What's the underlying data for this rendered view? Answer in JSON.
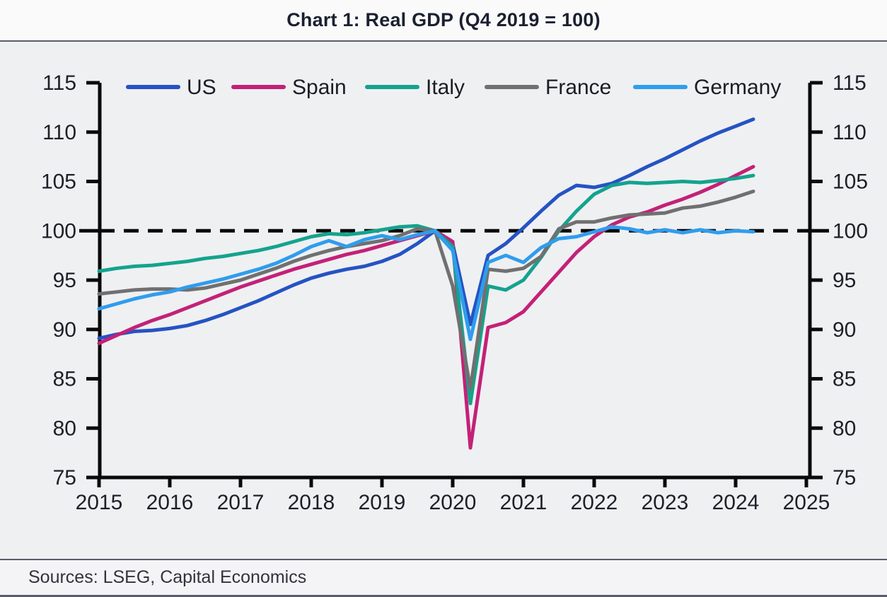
{
  "chart_data": {
    "type": "line",
    "title": "Chart 1: Real GDP (Q4 2019 = 100)",
    "sources": "Sources: LSEG, Capital Economics",
    "xlabel": "",
    "ylabel": "",
    "x_start": 2015,
    "x_step": 0.25,
    "x_ticks": [
      2015,
      2016,
      2017,
      2018,
      2019,
      2020,
      2021,
      2022,
      2023,
      2024,
      2025
    ],
    "y_ticks": [
      75,
      80,
      85,
      90,
      95,
      100,
      105,
      110,
      115
    ],
    "ylim": [
      75,
      115
    ],
    "xlim": [
      2015,
      2025.1
    ],
    "grid": false,
    "legend_position": "top-inside",
    "axis_color": "#0a0a0a",
    "reference_line": {
      "value": 100,
      "style": "dashed",
      "color": "#0a0a0a"
    },
    "series": [
      {
        "name": "US",
        "color": "#2553c4",
        "values": [
          89.1,
          89.5,
          89.8,
          89.9,
          90.1,
          90.4,
          90.9,
          91.5,
          92.2,
          92.9,
          93.7,
          94.5,
          95.2,
          95.7,
          96.1,
          96.4,
          96.9,
          97.6,
          98.7,
          100.0,
          98.7,
          90.5,
          97.5,
          98.7,
          100.3,
          102.0,
          103.6,
          104.6,
          104.4,
          104.8,
          105.6,
          106.5,
          107.3,
          108.2,
          109.1,
          109.9,
          110.6,
          111.3
        ]
      },
      {
        "name": "Spain",
        "color": "#c32178",
        "values": [
          88.6,
          89.4,
          90.2,
          90.9,
          91.5,
          92.2,
          92.9,
          93.6,
          94.3,
          94.9,
          95.5,
          96.1,
          96.6,
          97.1,
          97.6,
          98.0,
          98.5,
          99.0,
          99.5,
          100.0,
          98.9,
          78.0,
          90.2,
          90.7,
          91.8,
          93.8,
          95.8,
          97.8,
          99.4,
          100.6,
          101.4,
          101.9,
          102.6,
          103.2,
          103.9,
          104.7,
          105.6,
          106.5
        ]
      },
      {
        "name": "Italy",
        "color": "#14a38e",
        "values": [
          95.9,
          96.2,
          96.4,
          96.5,
          96.7,
          96.9,
          97.2,
          97.4,
          97.7,
          98.0,
          98.4,
          98.9,
          99.4,
          99.7,
          99.6,
          99.8,
          100.1,
          100.4,
          100.5,
          100.0,
          98.4,
          82.5,
          94.4,
          94.0,
          95.0,
          97.3,
          100.0,
          102.0,
          103.7,
          104.6,
          104.9,
          104.8,
          104.9,
          105.0,
          104.9,
          105.1,
          105.3,
          105.6
        ]
      },
      {
        "name": "France",
        "color": "#707070",
        "values": [
          93.6,
          93.8,
          94.0,
          94.1,
          94.1,
          94.0,
          94.2,
          94.6,
          95.0,
          95.6,
          96.2,
          96.9,
          97.5,
          98.0,
          98.4,
          98.7,
          99.0,
          99.5,
          100.2,
          100.0,
          94.4,
          84.0,
          96.1,
          95.9,
          96.2,
          97.4,
          100.2,
          100.9,
          100.9,
          101.3,
          101.6,
          101.7,
          101.8,
          102.3,
          102.5,
          102.9,
          103.4,
          104.0
        ]
      },
      {
        "name": "Germany",
        "color": "#2f9ded",
        "values": [
          92.1,
          92.6,
          93.1,
          93.5,
          93.8,
          94.3,
          94.7,
          95.1,
          95.6,
          96.1,
          96.7,
          97.5,
          98.4,
          99.0,
          98.4,
          99.1,
          99.5,
          99.1,
          99.6,
          100.0,
          98.0,
          89.0,
          96.8,
          97.5,
          96.8,
          98.3,
          99.2,
          99.4,
          99.9,
          100.4,
          100.2,
          99.8,
          100.1,
          99.8,
          100.1,
          99.8,
          100.0,
          99.9
        ]
      }
    ]
  }
}
